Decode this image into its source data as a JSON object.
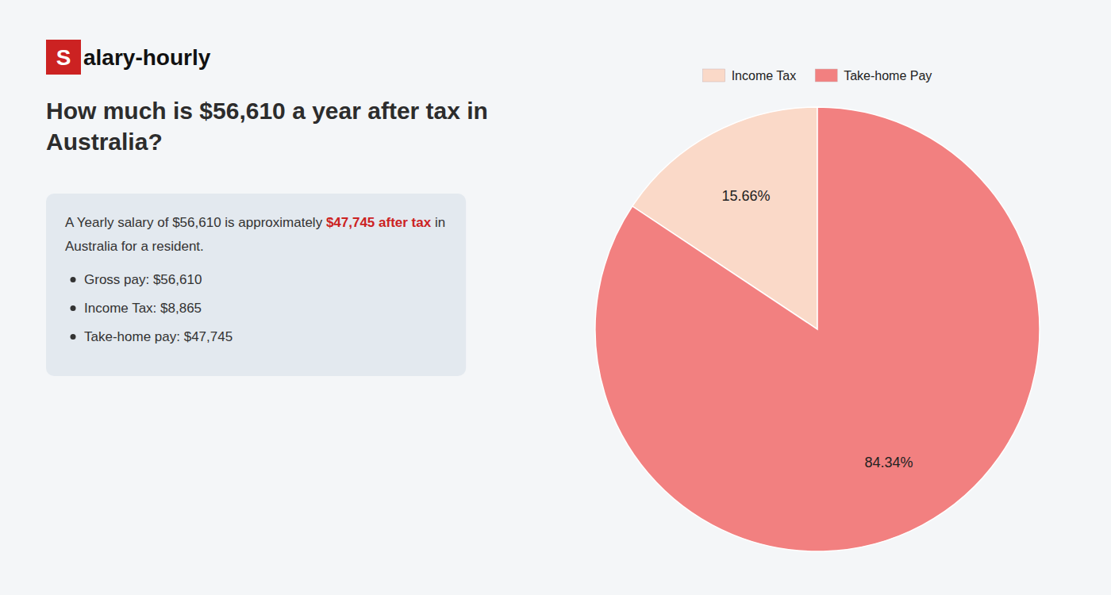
{
  "chart_data": {
    "type": "pie",
    "title": "How much is $56,610 a year after tax in Australia?",
    "categories": [
      "Income Tax",
      "Take-home Pay"
    ],
    "values": [
      15.66,
      84.34
    ],
    "value_labels": [
      "15.66%",
      "84.34%"
    ],
    "colors": [
      "#fad9c8",
      "#f28080"
    ],
    "data_labels": true,
    "legend": "top",
    "annotations": [
      {
        "text": "S",
        "color": "#cc2222"
      },
      {
        "text": "alary-hourly"
      },
      {
        "text": "A Yearly salary of $56,610 is approximately "
      },
      {
        "text": "$47,745 after tax",
        "color": "#cc2222"
      },
      {
        "text": " in"
      },
      {
        "text": "Australia for a resident."
      },
      {
        "text": "Gross pay: $56,610"
      },
      {
        "text": "Income Tax: $8,865"
      },
      {
        "text": "Take-home pay: $47,745"
      }
    ]
  }
}
